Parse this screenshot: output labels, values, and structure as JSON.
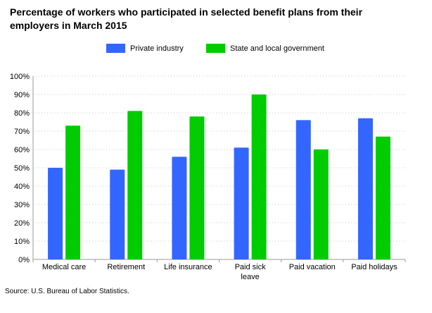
{
  "title": "Percentage of workers who participated in selected benefit plans from their employers in March 2015",
  "source": "Source: U.S. Bureau of Labor Statistics.",
  "colors": {
    "private": "#3366ff",
    "state": "#00cc00",
    "grid": "#c8c8c8",
    "axis": "#999999"
  },
  "chart_data": {
    "type": "bar",
    "categories": [
      "Medical care",
      "Retirement",
      "Life insurance",
      "Paid sick leave",
      "Paid vacation",
      "Paid holidays"
    ],
    "category_lines": [
      [
        "Medical care"
      ],
      [
        "Retirement"
      ],
      [
        "Life insurance"
      ],
      [
        "Paid sick",
        "leave"
      ],
      [
        "Paid vacation"
      ],
      [
        "Paid holidays"
      ]
    ],
    "series": [
      {
        "name": "Private industry",
        "values": [
          50,
          49,
          56,
          61,
          76,
          77
        ]
      },
      {
        "name": "State and local government",
        "values": [
          73,
          81,
          78,
          90,
          60,
          67
        ]
      }
    ],
    "ylim": [
      0,
      100
    ],
    "yticks": [
      0,
      10,
      20,
      30,
      40,
      50,
      60,
      70,
      80,
      90,
      100
    ],
    "ytick_labels": [
      "0%",
      "10%",
      "20%",
      "30%",
      "40%",
      "50%",
      "60%",
      "70%",
      "80%",
      "90%",
      "100%"
    ],
    "grid": true,
    "legend_position": "top-center"
  }
}
